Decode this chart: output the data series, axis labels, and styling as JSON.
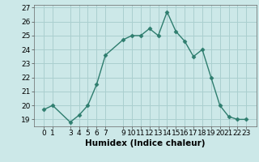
{
  "x": [
    0,
    1,
    3,
    4,
    5,
    6,
    7,
    9,
    10,
    11,
    12,
    13,
    14,
    15,
    16,
    17,
    18,
    19,
    20,
    21,
    22,
    23
  ],
  "y": [
    19.7,
    20.0,
    18.8,
    19.3,
    20.0,
    21.5,
    23.6,
    24.7,
    25.0,
    25.0,
    25.5,
    25.0,
    26.7,
    25.3,
    24.6,
    23.5,
    24.0,
    22.0,
    20.0,
    19.2,
    19.0,
    19.0
  ],
  "line_color": "#2e7d6e",
  "marker": "D",
  "marker_size": 2.5,
  "bg_color": "#cce8e8",
  "grid_color": "#aacfcf",
  "xlabel": "Humidex (Indice chaleur)",
  "ylim": [
    18.5,
    27.2
  ],
  "yticks": [
    19,
    20,
    21,
    22,
    23,
    24,
    25,
    26,
    27
  ],
  "xticks": [
    0,
    1,
    3,
    4,
    5,
    6,
    7,
    9,
    10,
    11,
    12,
    13,
    14,
    15,
    16,
    17,
    18,
    19,
    20,
    21,
    22,
    23
  ],
  "tick_fontsize": 6.5,
  "xlabel_fontsize": 7.5
}
